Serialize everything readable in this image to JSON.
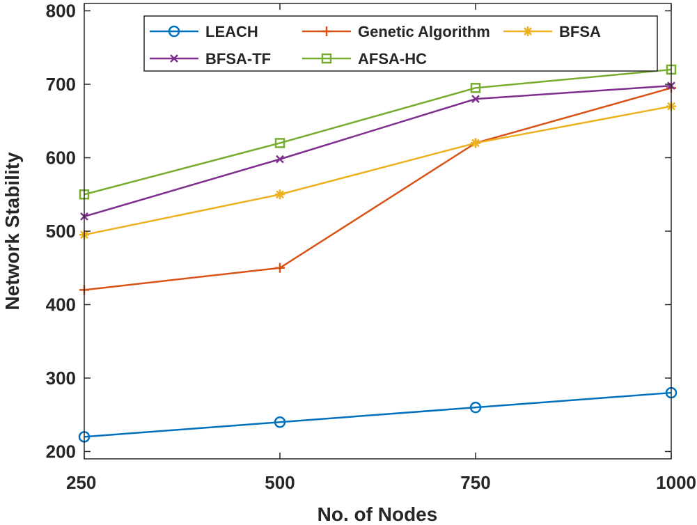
{
  "chart_data": {
    "type": "line",
    "title": "",
    "xlabel": "No. of Nodes",
    "ylabel": "Network Stability",
    "x": [
      250,
      500,
      750,
      1000
    ],
    "xlim": [
      250,
      1000
    ],
    "ylim": [
      190,
      810
    ],
    "xticks": [
      250,
      500,
      750,
      1000
    ],
    "yticks": [
      200,
      300,
      400,
      500,
      600,
      700,
      800
    ],
    "grid": false,
    "legend_position": "top",
    "series": [
      {
        "name": "LEACH",
        "color": "#0072BD",
        "marker": "circle",
        "values": [
          220,
          240,
          260,
          280
        ]
      },
      {
        "name": "Genetic Algorithm",
        "color": "#D95319",
        "marker": "plus",
        "values": [
          420,
          450,
          620,
          695
        ]
      },
      {
        "name": "BFSA",
        "color": "#EDB120",
        "marker": "asterisk",
        "values": [
          495,
          550,
          620,
          670
        ]
      },
      {
        "name": "BFSA-TF",
        "color": "#7E2F8E",
        "marker": "x",
        "values": [
          520,
          598,
          680,
          698
        ]
      },
      {
        "name": "AFSA-HC",
        "color": "#77AC30",
        "marker": "square",
        "values": [
          550,
          620,
          695,
          720
        ]
      }
    ]
  }
}
